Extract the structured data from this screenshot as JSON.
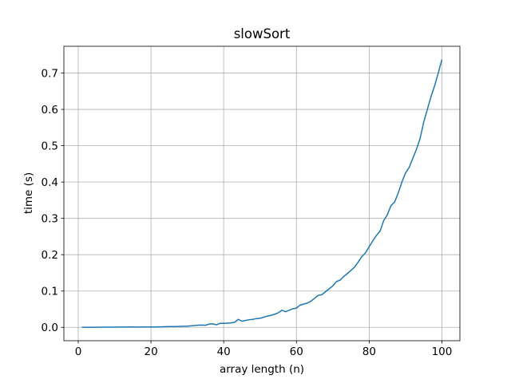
{
  "chart_data": {
    "type": "line",
    "title": "slowSort",
    "xlabel": "array length (n)",
    "ylabel": "time (s)",
    "x": [
      1,
      2,
      3,
      4,
      5,
      6,
      7,
      8,
      9,
      10,
      11,
      12,
      13,
      14,
      15,
      16,
      17,
      18,
      19,
      20,
      21,
      22,
      23,
      24,
      25,
      26,
      27,
      28,
      29,
      30,
      31,
      32,
      33,
      34,
      35,
      36,
      37,
      38,
      39,
      40,
      41,
      42,
      43,
      44,
      45,
      46,
      47,
      48,
      49,
      50,
      51,
      52,
      53,
      54,
      55,
      56,
      57,
      58,
      59,
      60,
      61,
      62,
      63,
      64,
      65,
      66,
      67,
      68,
      69,
      70,
      71,
      72,
      73,
      74,
      75,
      76,
      77,
      78,
      79,
      80,
      81,
      82,
      83,
      84,
      85,
      86,
      87,
      88,
      89,
      90,
      91,
      92,
      93,
      94,
      95,
      96,
      97,
      98,
      99,
      100
    ],
    "series": [
      {
        "name": "slowSort",
        "color": "#1f77b4",
        "values": [
          0.0002,
          0.0002,
          0.0003,
          0.0003,
          0.0003,
          0.0004,
          0.0004,
          0.0005,
          0.0005,
          0.0006,
          0.0007,
          0.0008,
          0.0009,
          0.0011,
          0.001,
          0.0008,
          0.0009,
          0.001,
          0.001,
          0.0011,
          0.0012,
          0.0013,
          0.0014,
          0.002,
          0.0021,
          0.0022,
          0.0023,
          0.0027,
          0.003,
          0.0034,
          0.004,
          0.005,
          0.006,
          0.0062,
          0.0058,
          0.009,
          0.0095,
          0.007,
          0.011,
          0.011,
          0.0115,
          0.012,
          0.014,
          0.022,
          0.017,
          0.019,
          0.021,
          0.022,
          0.024,
          0.025,
          0.028,
          0.031,
          0.033,
          0.036,
          0.04,
          0.047,
          0.043,
          0.047,
          0.051,
          0.053,
          0.061,
          0.064,
          0.067,
          0.072,
          0.08,
          0.088,
          0.09,
          0.098,
          0.106,
          0.114,
          0.126,
          0.13,
          0.14,
          0.148,
          0.157,
          0.166,
          0.18,
          0.195,
          0.205,
          0.222,
          0.238,
          0.253,
          0.265,
          0.294,
          0.31,
          0.335,
          0.345,
          0.37,
          0.4,
          0.425,
          0.44,
          0.465,
          0.49,
          0.52,
          0.565,
          0.6,
          0.635,
          0.665,
          0.7,
          0.737
        ]
      }
    ],
    "xlim": [
      -3.95,
      104.95
    ],
    "xticks": [
      0,
      20,
      40,
      60,
      80,
      100
    ],
    "ylim": [
      -0.0368,
      0.7737
    ],
    "yticks": [
      {
        "value": 0,
        "label": "0.0"
      },
      0.1,
      0.2,
      0.3,
      0.4,
      0.5,
      0.6,
      0.7
    ],
    "grid": true
  }
}
